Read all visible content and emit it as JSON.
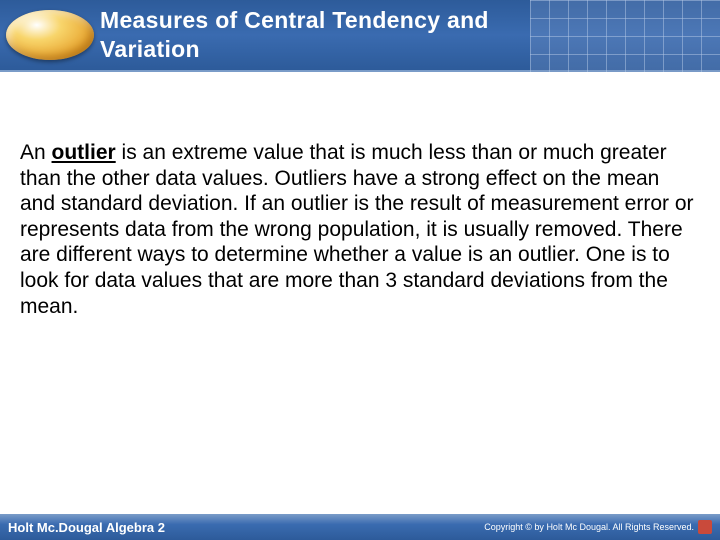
{
  "header": {
    "title_line1": "Measures of Central Tendency and",
    "title_line2": "Variation"
  },
  "body": {
    "prefix": "An ",
    "keyword": "outlier",
    "rest": " is an extreme value that is much less than or much greater than the other data values. Outliers have a strong effect on the mean and standard deviation. If an outlier is the result of measurement error or represents data from the wrong population, it is usually removed. There are different ways to determine whether a value is an outlier. One is to look for data values that are more than 3 standard deviations from the mean."
  },
  "footer": {
    "left": "Holt Mc.Dougal Algebra 2",
    "copyright": "Copyright © by Holt Mc Dougal. All Rights Reserved."
  },
  "colors": {
    "header_bg": "#2d5b9a",
    "oval_fill": "#e8a530",
    "text_color": "#000000",
    "title_color": "#ffffff"
  }
}
